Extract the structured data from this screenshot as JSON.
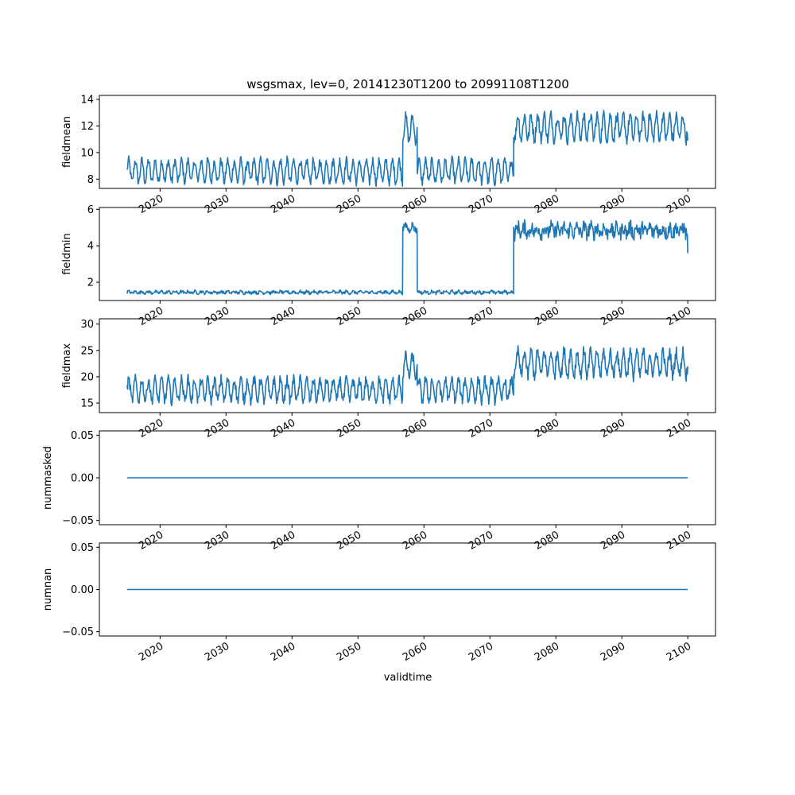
{
  "figure": {
    "title": "wsgsmax, lev=0, 20141230T1200 to 20991108T1200",
    "xlabel": "validtime"
  },
  "chart_data": [
    {
      "type": "line",
      "ylabel": "fieldmean",
      "x_range": [
        "2014-12-30",
        "2099-11-08"
      ],
      "xlim": [
        2010.8,
        2104.2
      ],
      "ylim": [
        7.3,
        14.3
      ],
      "yticks": [
        8,
        10,
        12,
        14
      ],
      "xticks": [
        "2020",
        "2030",
        "2040",
        "2050",
        "2060",
        "2070",
        "2080",
        "2090",
        "2100"
      ],
      "color": "#1f77b4",
      "segments": [
        {
          "from": 2015.0,
          "to": 2056.8,
          "base": 8.6,
          "amp": 0.8,
          "noise": 0.35
        },
        {
          "from": 2056.8,
          "to": 2059.0,
          "base": 11.8,
          "amp": 0.9,
          "noise": 0.4
        },
        {
          "from": 2059.0,
          "to": 2073.6,
          "base": 8.6,
          "amp": 0.8,
          "noise": 0.35
        },
        {
          "from": 2073.6,
          "to": 2100.0,
          "base": 11.9,
          "amp": 0.9,
          "noise": 0.45
        }
      ],
      "end_value": 10.9
    },
    {
      "type": "line",
      "ylabel": "fieldmin",
      "x_range": [
        "2014-12-30",
        "2099-11-08"
      ],
      "xlim": [
        2010.8,
        2104.2
      ],
      "ylim": [
        1.0,
        6.1
      ],
      "yticks": [
        2,
        4,
        6
      ],
      "xticks": [
        "2020",
        "2030",
        "2040",
        "2050",
        "2060",
        "2070",
        "2080",
        "2090",
        "2100"
      ],
      "color": "#1f77b4",
      "segments": [
        {
          "from": 2015.0,
          "to": 2056.8,
          "base": 1.45,
          "amp": 0.05,
          "noise": 0.08
        },
        {
          "from": 2056.8,
          "to": 2059.0,
          "base": 5.0,
          "amp": 0.15,
          "noise": 0.2
        },
        {
          "from": 2059.0,
          "to": 2073.6,
          "base": 1.45,
          "amp": 0.05,
          "noise": 0.08
        },
        {
          "from": 2073.6,
          "to": 2100.0,
          "base": 4.85,
          "amp": 0.2,
          "noise": 0.4
        }
      ],
      "end_value": 3.6
    },
    {
      "type": "line",
      "ylabel": "fieldmax",
      "x_range": [
        "2014-12-30",
        "2099-11-08"
      ],
      "xlim": [
        2010.8,
        2104.2
      ],
      "ylim": [
        13.2,
        31.0
      ],
      "yticks": [
        15,
        20,
        25,
        30
      ],
      "xticks": [
        "2020",
        "2030",
        "2040",
        "2050",
        "2060",
        "2070",
        "2080",
        "2090",
        "2100"
      ],
      "color": "#1f77b4",
      "segments": [
        {
          "from": 2015.0,
          "to": 2056.8,
          "base": 17.5,
          "amp": 2.0,
          "noise": 1.0
        },
        {
          "from": 2056.8,
          "to": 2059.0,
          "base": 22.0,
          "amp": 2.0,
          "noise": 1.0
        },
        {
          "from": 2059.0,
          "to": 2073.6,
          "base": 17.5,
          "amp": 2.0,
          "noise": 1.0
        },
        {
          "from": 2073.6,
          "to": 2100.0,
          "base": 22.5,
          "amp": 2.3,
          "noise": 1.2
        }
      ],
      "end_value": 22.0
    },
    {
      "type": "line",
      "ylabel": "nummasked",
      "x_range": [
        "2014-12-30",
        "2099-11-08"
      ],
      "xlim": [
        2010.8,
        2104.2
      ],
      "ylim": [
        -0.055,
        0.055
      ],
      "yticks": [
        -0.05,
        0.0,
        0.05
      ],
      "ytick_labels": [
        "−0.05",
        "0.00",
        "0.05"
      ],
      "xticks": [
        "2020",
        "2030",
        "2040",
        "2050",
        "2060",
        "2070",
        "2080",
        "2090",
        "2100"
      ],
      "color": "#1f77b4",
      "constant": 0.0
    },
    {
      "type": "line",
      "ylabel": "numnan",
      "x_range": [
        "2014-12-30",
        "2099-11-08"
      ],
      "xlim": [
        2010.8,
        2104.2
      ],
      "ylim": [
        -0.055,
        0.055
      ],
      "yticks": [
        -0.05,
        0.0,
        0.05
      ],
      "ytick_labels": [
        "−0.05",
        "0.00",
        "0.05"
      ],
      "xticks": [
        "2020",
        "2030",
        "2040",
        "2050",
        "2060",
        "2070",
        "2080",
        "2090",
        "2100"
      ],
      "color": "#1f77b4",
      "constant": 0.0
    }
  ]
}
